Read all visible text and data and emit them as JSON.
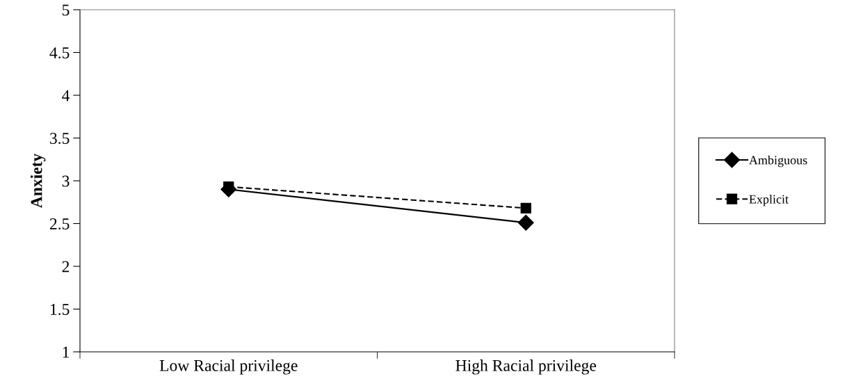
{
  "chart_data": {
    "type": "line",
    "ylabel": "Anxiety",
    "categories": [
      "Low Racial privilege",
      "High Racial privilege"
    ],
    "series": [
      {
        "name": "Ambiguous",
        "color": "#000000",
        "values": [
          2.9,
          2.51
        ],
        "marker": "diamond",
        "line_style": "solid"
      },
      {
        "name": "Explicit",
        "color": "#000000",
        "values": [
          2.93,
          2.68
        ],
        "marker": "square",
        "line_style": "dashed"
      }
    ],
    "ylim": [
      1,
      5
    ],
    "yticks": [
      1,
      1.5,
      2,
      2.5,
      3,
      3.5,
      4,
      4.5,
      5
    ],
    "grid": false,
    "legend": "right"
  }
}
